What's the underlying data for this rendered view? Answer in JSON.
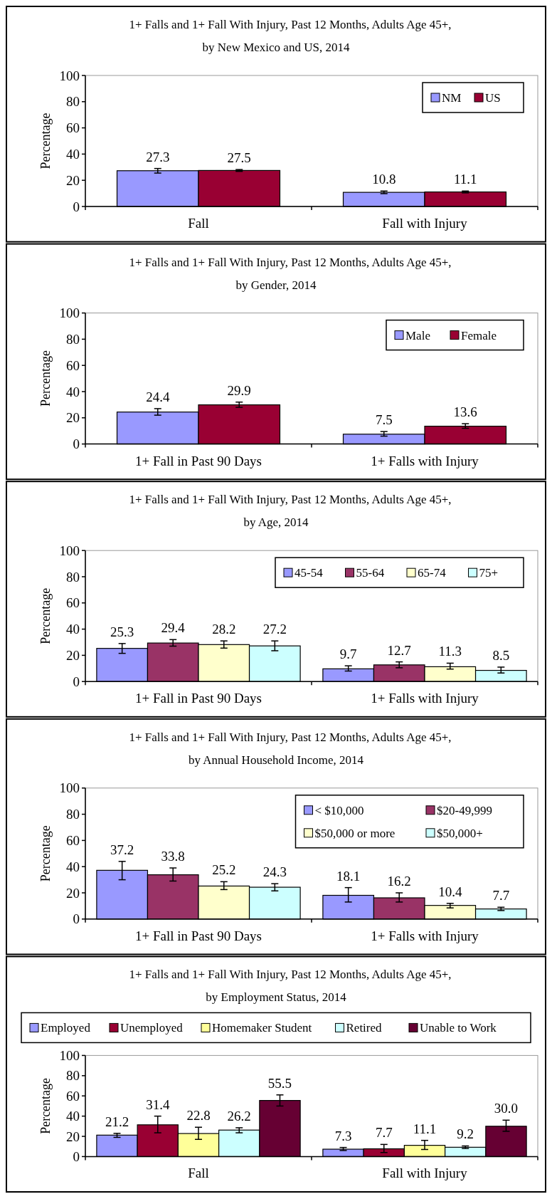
{
  "chart_data": [
    {
      "type": "bar",
      "title": "1+ Falls and 1+ Fall With Injury, Past 12 Months, Adults Age 45+,",
      "subtitle": "by New Mexico and US,  2014",
      "ylabel": "Percentage",
      "categories": [
        "Fall",
        "Fall with Injury"
      ],
      "ylim": [
        0,
        100
      ],
      "yticks": [
        0,
        20,
        40,
        60,
        80,
        100
      ],
      "legend": "top right",
      "data_labels": true,
      "series": [
        {
          "name": "NM",
          "color": "#9999ff",
          "values": [
            27.3,
            10.8
          ],
          "errors": [
            [
              25.5,
              29
            ],
            [
              9.8,
              11.8
            ]
          ]
        },
        {
          "name": "US",
          "color": "#990033",
          "values": [
            27.5,
            11.1
          ],
          "errors": [
            [
              26.8,
              28.2
            ],
            [
              10.4,
              11.8
            ]
          ]
        }
      ]
    },
    {
      "type": "bar",
      "title": "1+ Falls and 1+ Fall With Injury, Past 12 Months, Adults Age 45+,",
      "subtitle": "by Gender, 2014",
      "ylabel": "Percentage",
      "categories": [
        "1+ Fall in Past 90 Days",
        "1+ Falls with Injury"
      ],
      "ylim": [
        0,
        100
      ],
      "yticks": [
        0,
        20,
        40,
        60,
        80,
        100
      ],
      "legend": "top right",
      "data_labels": true,
      "series": [
        {
          "name": "Male",
          "color": "#9999ff",
          "values": [
            24.4,
            7.5
          ],
          "errors": [
            [
              22,
              27
            ],
            [
              6,
              9.5
            ]
          ]
        },
        {
          "name": "Female",
          "color": "#990033",
          "values": [
            29.9,
            13.6
          ],
          "errors": [
            [
              28,
              32
            ],
            [
              12,
              15.5
            ]
          ]
        }
      ]
    },
    {
      "type": "bar",
      "title": "1+ Falls and 1+ Fall With Injury, Past 12 Months, Adults Age 45+,",
      "subtitle": "by Age, 2014",
      "ylabel": "Percentage",
      "categories": [
        "1+ Fall in Past 90 Days",
        "1+ Falls with Injury"
      ],
      "ylim": [
        0,
        100
      ],
      "yticks": [
        0,
        20,
        40,
        60,
        80,
        100
      ],
      "legend": "top right",
      "data_labels": true,
      "series": [
        {
          "name": "45-54",
          "color": "#9999ff",
          "values": [
            25.3,
            9.7
          ],
          "errors": [
            [
              21.5,
              29
            ],
            [
              8,
              12
            ]
          ]
        },
        {
          "name": "55-64",
          "color": "#993366",
          "values": [
            29.4,
            12.7
          ],
          "errors": [
            [
              27,
              32
            ],
            [
              10.5,
              15
            ]
          ]
        },
        {
          "name": "65-74",
          "color": "#ffffcc",
          "values": [
            28.2,
            11.3
          ],
          "errors": [
            [
              25.5,
              31
            ],
            [
              9.5,
              14
            ]
          ]
        },
        {
          "name": "75+",
          "color": "#ccffff",
          "values": [
            27.2,
            8.5
          ],
          "errors": [
            [
              23.5,
              31
            ],
            [
              6.5,
              11
            ]
          ]
        }
      ]
    },
    {
      "type": "bar",
      "title": "1+ Falls and 1+ Fall With Injury, Past 12 Months, Adults Age 45+,",
      "subtitle": "by Annual Household Income, 2014",
      "ylabel": "Percentage",
      "categories": [
        "1+ Fall in Past 90 Days",
        "1+ Falls with Injury"
      ],
      "ylim": [
        0,
        100
      ],
      "yticks": [
        0,
        20,
        40,
        60,
        80,
        100
      ],
      "legend": "top right",
      "data_labels": true,
      "series": [
        {
          "name": "< $10,000",
          "color": "#9999ff",
          "values": [
            37.2,
            18.1
          ],
          "errors": [
            [
              30,
              44
            ],
            [
              13,
              24
            ]
          ]
        },
        {
          "name": "$20-49,999",
          "color": "#993366",
          "values": [
            33.8,
            16.2
          ],
          "errors": [
            [
              29,
              39
            ],
            [
              13,
              20
            ]
          ]
        },
        {
          "name": "$50,000 or more",
          "color": "#ffffcc",
          "values": [
            25.2,
            10.4
          ],
          "errors": [
            [
              22.5,
              28.5
            ],
            [
              8.5,
              12
            ]
          ]
        },
        {
          "name": "$50,000+",
          "color": "#ccffff",
          "values": [
            24.3,
            7.7
          ],
          "errors": [
            [
              21.5,
              27
            ],
            [
              6.5,
              9
            ]
          ]
        }
      ]
    },
    {
      "type": "bar",
      "title": "1+ Falls and 1+ Fall With Injury, Past 12 Months, Adults Age 45+,",
      "subtitle": "by Employment Status, 2014",
      "ylabel": "Percentage",
      "categories": [
        "Fall",
        "Fall with Injury"
      ],
      "ylim": [
        0,
        100
      ],
      "yticks": [
        0,
        20,
        40,
        60,
        80,
        100
      ],
      "legend": "top",
      "series": [
        {
          "name": "Employed",
          "color": "#9999ff",
          "values": [
            21.2,
            7.3
          ],
          "value_labels": [
            "21.2",
            "7.3"
          ],
          "errors": [
            [
              19,
              23
            ],
            [
              6,
              9
            ]
          ]
        },
        {
          "name": "Unemployed",
          "color": "#990033",
          "values": [
            31.4,
            7.7
          ],
          "value_labels": [
            "31.4",
            "7.7"
          ],
          "errors": [
            [
              23.5,
              40
            ],
            [
              4,
              12
            ]
          ]
        },
        {
          "name": "Homemaker Student",
          "color": "#ffff99",
          "values": [
            22.8,
            11.1
          ],
          "value_labels": [
            "22.8",
            "11.1"
          ],
          "errors": [
            [
              17,
              29
            ],
            [
              7,
              16
            ]
          ]
        },
        {
          "name": "Retired",
          "color": "#ccffff",
          "values": [
            26.2,
            9.2
          ],
          "value_labels": [
            "26.2",
            "9.2"
          ],
          "errors": [
            [
              23.5,
              28.5
            ],
            [
              8,
              10.5
            ]
          ]
        },
        {
          "name": "Unable to Work",
          "color": "#660033",
          "values": [
            55.5,
            30.0
          ],
          "value_labels": [
            "55.5",
            "30.0"
          ],
          "errors": [
            [
              50,
              61
            ],
            [
              25,
              36
            ]
          ]
        }
      ]
    }
  ]
}
